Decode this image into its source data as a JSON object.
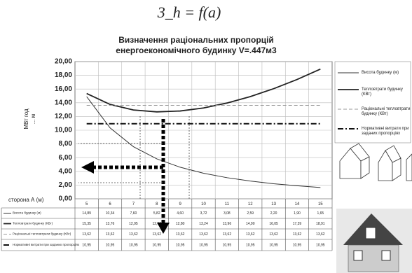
{
  "chart_data": {
    "type": "line",
    "subtitle": "3_h = f(a)",
    "title": [
      "Визначення раціональних пропорцій",
      "енергоекономічного будинку V=.447м3"
    ],
    "x_label": "сторона А (м)",
    "y_label": [
      "МВт год",
      "... м"
    ],
    "categories": [
      "5",
      "6",
      "7",
      "8",
      "9",
      "10",
      "11",
      "12",
      "13",
      "14",
      "15"
    ],
    "ylim": [
      0,
      20
    ],
    "yticks": [
      {
        "value": 0,
        "label": "0,00"
      },
      {
        "value": 2,
        "label": "2,00"
      },
      {
        "value": 4,
        "label": "4,00"
      },
      {
        "value": 6,
        "label": "6,00"
      },
      {
        "value": 8,
        "label": "8,00"
      },
      {
        "value": 10,
        "label": "10,00"
      },
      {
        "value": 12,
        "label": "12,00"
      },
      {
        "value": 14,
        "label": "14,00"
      },
      {
        "value": 16,
        "label": "16,00"
      },
      {
        "value": 18,
        "label": "18,00"
      },
      {
        "value": 20,
        "label": "20,00"
      }
    ],
    "grid": true,
    "series": [
      {
        "name": "Висота будинку (м)",
        "color": "#333333",
        "style": "solid",
        "width": 1,
        "values": [
          14.89,
          10.34,
          7.6,
          5.82,
          4.6,
          3.72,
          3.08,
          2.59,
          2.2,
          1.9,
          1.65
        ],
        "value_labels": [
          "14,89",
          "10,34",
          "7,60",
          "5,82",
          "4,60",
          "3,72",
          "3,08",
          "2,59",
          "2,20",
          "1,90",
          "1,65"
        ]
      },
      {
        "name": "Тепловтрати будинку (КВт)",
        "color": "#222222",
        "style": "solid",
        "width": 1.8,
        "values": [
          15.35,
          13.76,
          12.95,
          12.67,
          12.8,
          13.24,
          13.96,
          14.9,
          16.05,
          17.39,
          18.91
        ],
        "value_labels": [
          "15,35",
          "13,76",
          "12,95",
          "12,67",
          "12,80",
          "13,24",
          "13,96",
          "14,90",
          "16,05",
          "17,39",
          "18,91"
        ]
      },
      {
        "name": "Раціональні тепловтрати будинку (КВт)",
        "color": "#999999",
        "style": "dashed",
        "width": 1,
        "values": [
          13.62,
          13.62,
          13.62,
          13.62,
          13.62,
          13.62,
          13.62,
          13.62,
          13.62,
          13.62,
          13.62
        ],
        "value_labels": [
          "13,62",
          "13,62",
          "13,62",
          "13,62",
          "13,62",
          "13,62",
          "13,62",
          "13,62",
          "13,62",
          "13,62",
          "13,62"
        ]
      },
      {
        "name": "Нормативні витрати при заданих пропорціях",
        "color": "#111111",
        "style": "dashdot",
        "width": 2,
        "values": [
          10.95,
          10.95,
          10.95,
          10.95,
          10.95,
          10.95,
          10.95,
          10.95,
          10.95,
          10.95,
          10.95
        ],
        "value_labels": [
          "10,95",
          "10,95",
          "10,95",
          "10,95",
          "10,95",
          "10,95",
          "10,95",
          "10,95",
          "10,95",
          "10,95",
          "10,95"
        ]
      }
    ]
  }
}
